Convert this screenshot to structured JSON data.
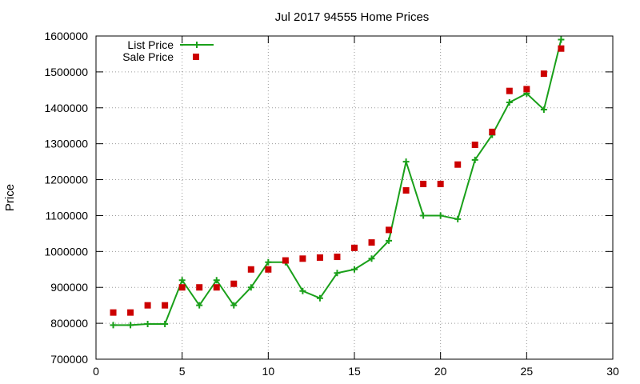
{
  "colors": {
    "list": "#1aa01a",
    "sale": "#cc0000",
    "axis": "#000000",
    "grid": "#9a9a9a"
  },
  "chart_data": {
    "type": "line",
    "title": "Jul 2017 94555 Home Prices",
    "xlabel": "",
    "ylabel": "Price",
    "xlim": [
      0,
      30
    ],
    "ylim": [
      700000,
      1600000
    ],
    "x_ticks": [
      0,
      5,
      10,
      15,
      20,
      25,
      30
    ],
    "y_ticks": [
      700000,
      800000,
      900000,
      1000000,
      1100000,
      1200000,
      1300000,
      1400000,
      1500000,
      1600000
    ],
    "grid": true,
    "legend": "top-left",
    "series": [
      {
        "name": "List Price",
        "style": "line+cross",
        "color": "#1aa01a",
        "x": [
          1,
          2,
          3,
          4,
          5,
          6,
          7,
          8,
          9,
          10,
          11,
          12,
          13,
          14,
          15,
          16,
          17,
          18,
          19,
          20,
          21,
          22,
          23,
          24,
          25,
          26,
          27
        ],
        "values": [
          795000,
          795000,
          798000,
          798000,
          920000,
          850000,
          920000,
          850000,
          900000,
          970000,
          970000,
          890000,
          870000,
          940000,
          950000,
          980000,
          1030000,
          1250000,
          1100000,
          1100000,
          1090000,
          1255000,
          1325000,
          1415000,
          1440000,
          1395000,
          1590000
        ]
      },
      {
        "name": "Sale Price",
        "style": "square",
        "color": "#cc0000",
        "x": [
          1,
          2,
          3,
          4,
          5,
          6,
          7,
          8,
          9,
          10,
          11,
          12,
          13,
          14,
          15,
          16,
          17,
          18,
          19,
          20,
          21,
          22,
          23,
          24,
          25,
          26,
          27
        ],
        "values": [
          830000,
          830000,
          850000,
          850000,
          900000,
          900000,
          900000,
          910000,
          950000,
          950000,
          975000,
          980000,
          983000,
          985000,
          1010000,
          1025000,
          1060000,
          1170000,
          1188000,
          1188000,
          1242000,
          1297000,
          1333000,
          1447000,
          1452000,
          1495000,
          1565000
        ]
      }
    ]
  }
}
